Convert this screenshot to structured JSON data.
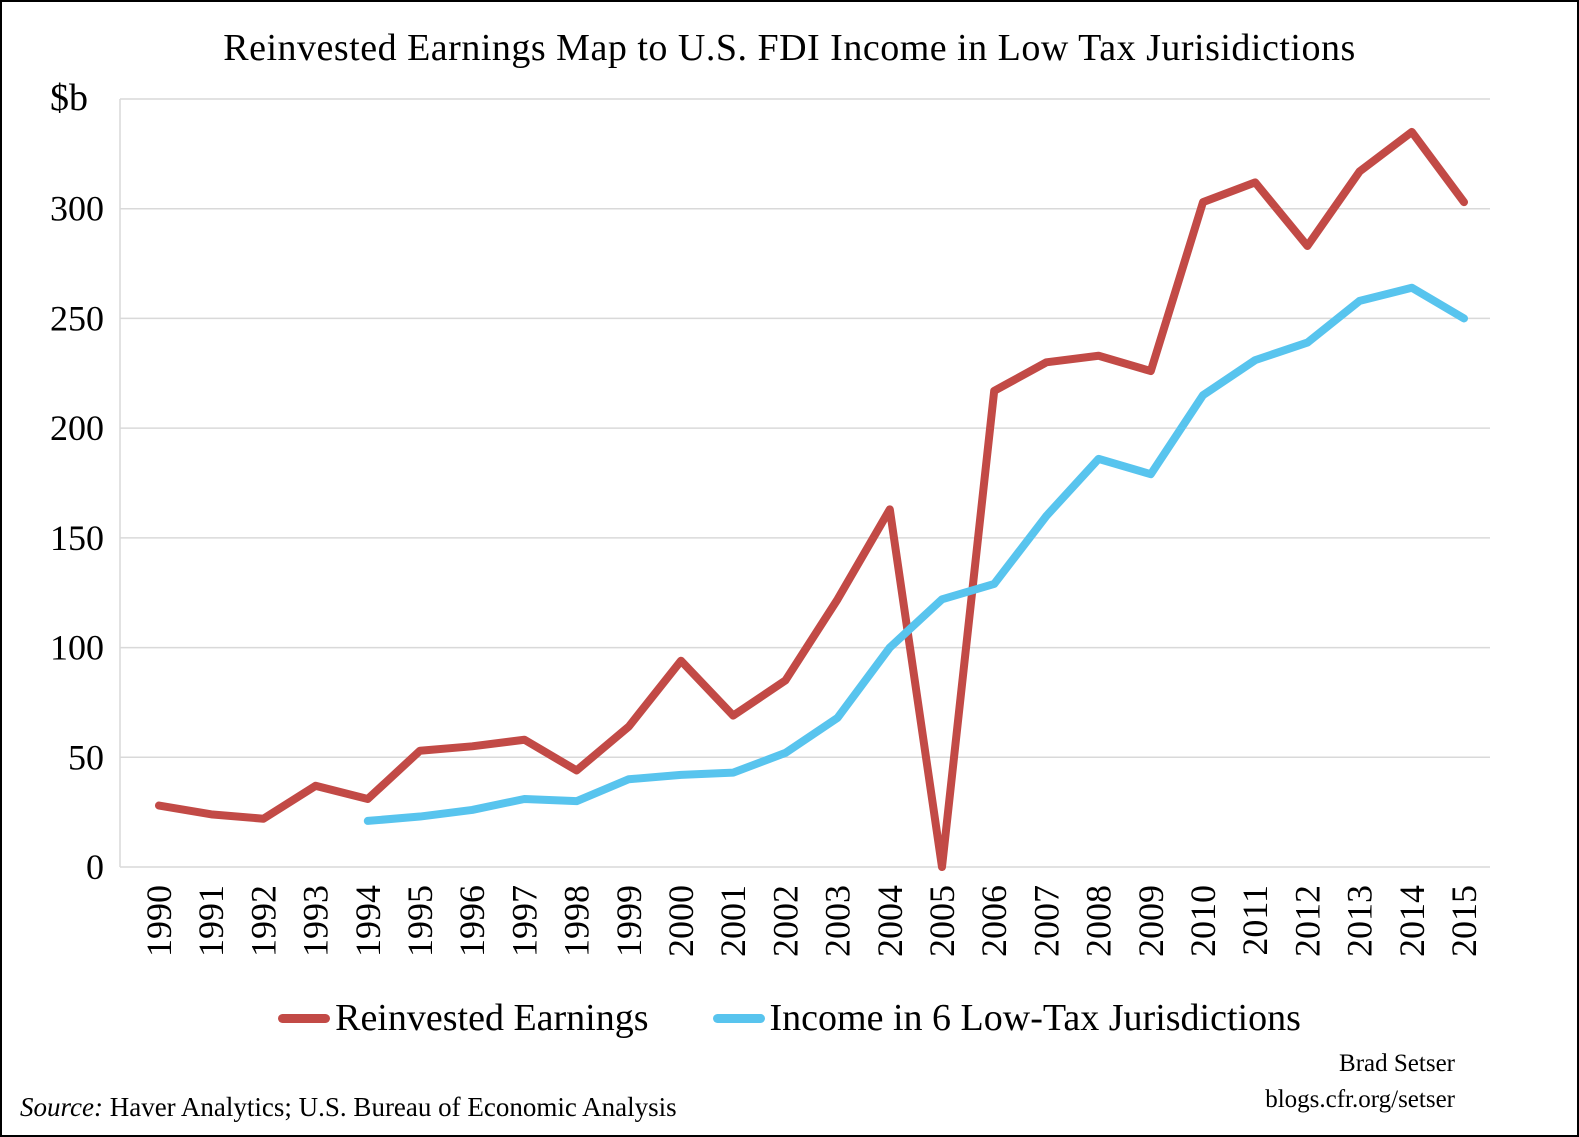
{
  "title": "Reinvested Earnings Map to U.S. FDI Income in Low Tax Jurisidictions",
  "y_axis_unit": "$b",
  "legend": {
    "series1": "Reinvested Earnings",
    "series2": "Income in 6 Low-Tax Jurisdictions"
  },
  "footer": {
    "source_prefix": "Source:",
    "source_text": "Haver Analytics; U.S. Bureau of Economic Analysis",
    "credit_name": "Brad Setser",
    "credit_url": "blogs.cfr.org/setser"
  },
  "colors": {
    "reinvested": "#c24a46",
    "low_tax": "#58c4ee",
    "gridline": "#d9d9d9",
    "text": "#000000"
  },
  "chart_data": {
    "type": "line",
    "title": "Reinvested Earnings Map to U.S. FDI Income in Low Tax Jurisidictions",
    "xlabel": "",
    "ylabel": "$b",
    "ylim": [
      0,
      350
    ],
    "ytick_step": 50,
    "ytick_labels_max": 300,
    "grid": true,
    "legend_position": "bottom",
    "categories": [
      "1990",
      "1991",
      "1992",
      "1993",
      "1994",
      "1995",
      "1996",
      "1997",
      "1998",
      "1999",
      "2000",
      "2001",
      "2002",
      "2003",
      "2004",
      "2005",
      "2006",
      "2007",
      "2008",
      "2009",
      "2010",
      "2011",
      "2012",
      "2013",
      "2014",
      "2015"
    ],
    "series": [
      {
        "name": "Reinvested Earnings",
        "color_key": "reinvested",
        "values": [
          28,
          24,
          22,
          37,
          31,
          53,
          55,
          58,
          44,
          64,
          94,
          69,
          85,
          122,
          163,
          0,
          217,
          230,
          233,
          226,
          303,
          312,
          283,
          317,
          335,
          303
        ]
      },
      {
        "name": "Income in 6 Low-Tax Jurisdictions",
        "color_key": "low_tax",
        "values": [
          null,
          null,
          null,
          null,
          21,
          23,
          26,
          31,
          30,
          40,
          42,
          43,
          52,
          68,
          100,
          122,
          129,
          160,
          186,
          179,
          215,
          231,
          239,
          258,
          264,
          250
        ]
      }
    ]
  }
}
